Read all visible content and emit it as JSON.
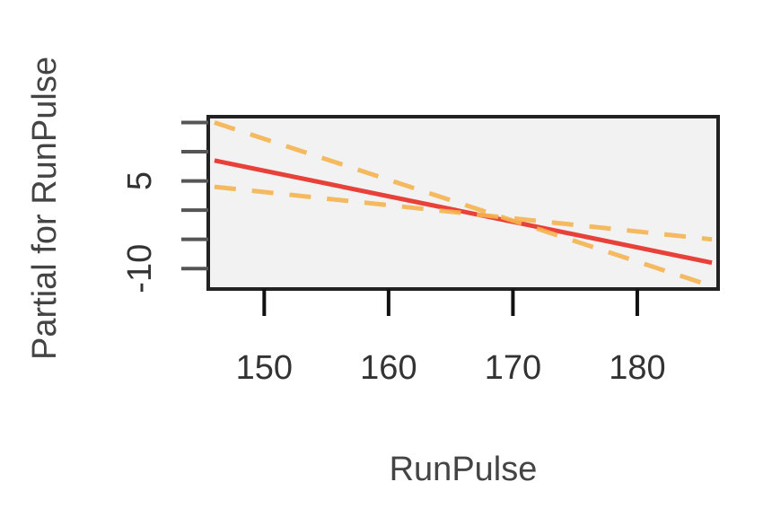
{
  "chart_data": {
    "type": "line",
    "xlabel": "RunPulse",
    "ylabel": "Partial for RunPulse",
    "xlim": [
      145.5,
      186.5
    ],
    "ylim": [
      -13.5,
      16
    ],
    "x_ticks": [
      150,
      160,
      170,
      180
    ],
    "y_ticks": [
      -15,
      -10,
      -5,
      0,
      5,
      10,
      15
    ],
    "y_tick_labels": [
      {
        "value": -10,
        "label": "-10"
      },
      {
        "value": 5,
        "label": "5"
      }
    ],
    "grid": false,
    "series": [
      {
        "role": "fit",
        "style": "solid",
        "color": "#e8413a",
        "x": [
          146,
          186
        ],
        "y": [
          8.5,
          -9
        ]
      },
      {
        "role": "upper-band",
        "style": "dashed",
        "color": "#f5b250",
        "x": [
          146,
          186
        ],
        "y": [
          15,
          -13
        ]
      },
      {
        "role": "lower-band",
        "style": "dashed",
        "color": "#f5b250",
        "x": [
          146,
          186
        ],
        "y": [
          4,
          -5
        ]
      }
    ]
  }
}
